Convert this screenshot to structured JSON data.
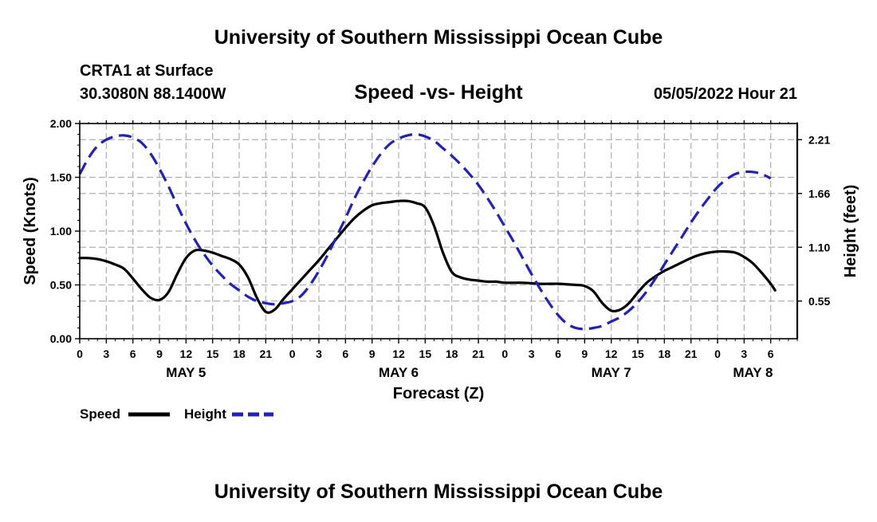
{
  "page": {
    "title_top": "University of Southern Mississippi Ocean Cube",
    "title_bottom": "University of Southern Mississippi Ocean Cube",
    "station": "CRTA1 at Surface",
    "coords": "30.3080N  88.1400W",
    "datetime": "05/05/2022 Hour 21"
  },
  "chart_data": {
    "type": "line",
    "title": "Speed -vs- Height",
    "xlabel": "Forecast (Z)",
    "ylabel_left": "Speed (Knots)",
    "ylabel_right": "Height (feet)",
    "x_range_hours": [
      0,
      81
    ],
    "x_ticks": [
      {
        "h": 0,
        "label": "0"
      },
      {
        "h": 3,
        "label": "3"
      },
      {
        "h": 6,
        "label": "6"
      },
      {
        "h": 9,
        "label": "9"
      },
      {
        "h": 12,
        "label": "12"
      },
      {
        "h": 15,
        "label": "15"
      },
      {
        "h": 18,
        "label": "18"
      },
      {
        "h": 21,
        "label": "21"
      },
      {
        "h": 24,
        "label": "0"
      },
      {
        "h": 27,
        "label": "3"
      },
      {
        "h": 30,
        "label": "6"
      },
      {
        "h": 33,
        "label": "9"
      },
      {
        "h": 36,
        "label": "12"
      },
      {
        "h": 39,
        "label": "15"
      },
      {
        "h": 42,
        "label": "18"
      },
      {
        "h": 45,
        "label": "21"
      },
      {
        "h": 48,
        "label": "0"
      },
      {
        "h": 51,
        "label": "3"
      },
      {
        "h": 54,
        "label": "6"
      },
      {
        "h": 57,
        "label": "9"
      },
      {
        "h": 60,
        "label": "12"
      },
      {
        "h": 63,
        "label": "15"
      },
      {
        "h": 66,
        "label": "18"
      },
      {
        "h": 69,
        "label": "21"
      },
      {
        "h": 72,
        "label": "0"
      },
      {
        "h": 75,
        "label": "3"
      },
      {
        "h": 78,
        "label": "6"
      }
    ],
    "day_labels": [
      {
        "h": 12,
        "label": "MAY 5"
      },
      {
        "h": 36,
        "label": "MAY 6"
      },
      {
        "h": 60,
        "label": "MAY 7"
      },
      {
        "h": 76,
        "label": "MAY 8"
      }
    ],
    "y_left": {
      "range": [
        0,
        2.0
      ],
      "ticks": [
        {
          "v": 0.0,
          "label": "0.00"
        },
        {
          "v": 0.5,
          "label": "0.50"
        },
        {
          "v": 1.0,
          "label": "1.00"
        },
        {
          "v": 1.5,
          "label": "1.50"
        },
        {
          "v": 2.0,
          "label": "2.00"
        }
      ]
    },
    "y_right": {
      "ticks": [
        {
          "v": 0.35,
          "label": "0.55"
        },
        {
          "v": 0.85,
          "label": "1.10"
        },
        {
          "v": 1.35,
          "label": "1.66"
        },
        {
          "v": 1.85,
          "label": "2.21"
        }
      ]
    },
    "series": [
      {
        "name": "Speed",
        "color": "#000000",
        "dash": "solid",
        "points": [
          [
            0,
            0.75
          ],
          [
            1,
            0.75
          ],
          [
            2,
            0.74
          ],
          [
            3,
            0.72
          ],
          [
            4,
            0.69
          ],
          [
            5,
            0.65
          ],
          [
            6,
            0.56
          ],
          [
            7,
            0.46
          ],
          [
            8,
            0.38
          ],
          [
            9,
            0.36
          ],
          [
            10,
            0.43
          ],
          [
            11,
            0.6
          ],
          [
            12,
            0.75
          ],
          [
            13,
            0.82
          ],
          [
            14,
            0.82
          ],
          [
            15,
            0.8
          ],
          [
            16,
            0.77
          ],
          [
            17,
            0.74
          ],
          [
            18,
            0.69
          ],
          [
            19,
            0.57
          ],
          [
            20,
            0.38
          ],
          [
            21,
            0.25
          ],
          [
            22,
            0.27
          ],
          [
            23,
            0.37
          ],
          [
            24,
            0.46
          ],
          [
            25,
            0.55
          ],
          [
            26,
            0.64
          ],
          [
            27,
            0.73
          ],
          [
            28,
            0.83
          ],
          [
            29,
            0.93
          ],
          [
            30,
            1.03
          ],
          [
            31,
            1.12
          ],
          [
            32,
            1.19
          ],
          [
            33,
            1.24
          ],
          [
            34,
            1.26
          ],
          [
            35,
            1.27
          ],
          [
            36,
            1.28
          ],
          [
            37,
            1.28
          ],
          [
            38,
            1.26
          ],
          [
            39,
            1.22
          ],
          [
            40,
            1.05
          ],
          [
            41,
            0.8
          ],
          [
            42,
            0.62
          ],
          [
            43,
            0.57
          ],
          [
            44,
            0.55
          ],
          [
            45,
            0.54
          ],
          [
            46,
            0.53
          ],
          [
            47,
            0.53
          ],
          [
            48,
            0.52
          ],
          [
            50,
            0.52
          ],
          [
            52,
            0.51
          ],
          [
            54,
            0.51
          ],
          [
            56,
            0.5
          ],
          [
            57,
            0.49
          ],
          [
            58,
            0.44
          ],
          [
            59,
            0.33
          ],
          [
            60,
            0.26
          ],
          [
            61,
            0.27
          ],
          [
            62,
            0.33
          ],
          [
            63,
            0.43
          ],
          [
            64,
            0.52
          ],
          [
            65,
            0.58
          ],
          [
            66,
            0.63
          ],
          [
            67,
            0.67
          ],
          [
            68,
            0.71
          ],
          [
            69,
            0.75
          ],
          [
            70,
            0.78
          ],
          [
            71,
            0.8
          ],
          [
            72,
            0.81
          ],
          [
            73,
            0.81
          ],
          [
            74,
            0.8
          ],
          [
            75,
            0.76
          ],
          [
            76,
            0.7
          ],
          [
            77,
            0.61
          ],
          [
            78,
            0.51
          ],
          [
            78.5,
            0.45
          ]
        ]
      },
      {
        "name": "Height",
        "color": "#1f1fc8",
        "dash": "dashed",
        "points": [
          [
            0,
            1.53
          ],
          [
            1,
            1.68
          ],
          [
            2,
            1.79
          ],
          [
            3,
            1.85
          ],
          [
            4,
            1.88
          ],
          [
            5,
            1.89
          ],
          [
            6,
            1.87
          ],
          [
            7,
            1.82
          ],
          [
            8,
            1.72
          ],
          [
            9,
            1.58
          ],
          [
            10,
            1.42
          ],
          [
            11,
            1.24
          ],
          [
            12,
            1.07
          ],
          [
            13,
            0.92
          ],
          [
            14,
            0.79
          ],
          [
            15,
            0.68
          ],
          [
            16,
            0.59
          ],
          [
            17,
            0.51
          ],
          [
            18,
            0.45
          ],
          [
            19,
            0.39
          ],
          [
            20,
            0.35
          ],
          [
            21,
            0.33
          ],
          [
            22,
            0.32
          ],
          [
            23,
            0.33
          ],
          [
            24,
            0.35
          ],
          [
            25,
            0.4
          ],
          [
            26,
            0.5
          ],
          [
            27,
            0.63
          ],
          [
            28,
            0.78
          ],
          [
            29,
            0.95
          ],
          [
            30,
            1.12
          ],
          [
            31,
            1.3
          ],
          [
            32,
            1.46
          ],
          [
            33,
            1.6
          ],
          [
            34,
            1.72
          ],
          [
            35,
            1.81
          ],
          [
            36,
            1.86
          ],
          [
            37,
            1.89
          ],
          [
            38,
            1.9
          ],
          [
            39,
            1.88
          ],
          [
            40,
            1.84
          ],
          [
            41,
            1.77
          ],
          [
            42,
            1.7
          ],
          [
            43,
            1.62
          ],
          [
            44,
            1.53
          ],
          [
            45,
            1.43
          ],
          [
            46,
            1.31
          ],
          [
            47,
            1.18
          ],
          [
            48,
            1.04
          ],
          [
            49,
            0.9
          ],
          [
            50,
            0.75
          ],
          [
            51,
            0.6
          ],
          [
            52,
            0.46
          ],
          [
            53,
            0.33
          ],
          [
            54,
            0.22
          ],
          [
            55,
            0.14
          ],
          [
            56,
            0.1
          ],
          [
            57,
            0.09
          ],
          [
            58,
            0.1
          ],
          [
            59,
            0.12
          ],
          [
            60,
            0.16
          ],
          [
            61,
            0.2
          ],
          [
            62,
            0.26
          ],
          [
            63,
            0.34
          ],
          [
            64,
            0.44
          ],
          [
            65,
            0.56
          ],
          [
            66,
            0.69
          ],
          [
            67,
            0.82
          ],
          [
            68,
            0.95
          ],
          [
            69,
            1.08
          ],
          [
            70,
            1.2
          ],
          [
            71,
            1.31
          ],
          [
            72,
            1.41
          ],
          [
            73,
            1.48
          ],
          [
            74,
            1.53
          ],
          [
            75,
            1.55
          ],
          [
            76,
            1.55
          ],
          [
            77,
            1.53
          ],
          [
            78,
            1.49
          ]
        ]
      }
    ],
    "legend": [
      {
        "label": "Speed",
        "color": "#000000",
        "dash": "solid"
      },
      {
        "label": "Height",
        "color": "#1f1fc8",
        "dash": "dashed"
      }
    ]
  }
}
